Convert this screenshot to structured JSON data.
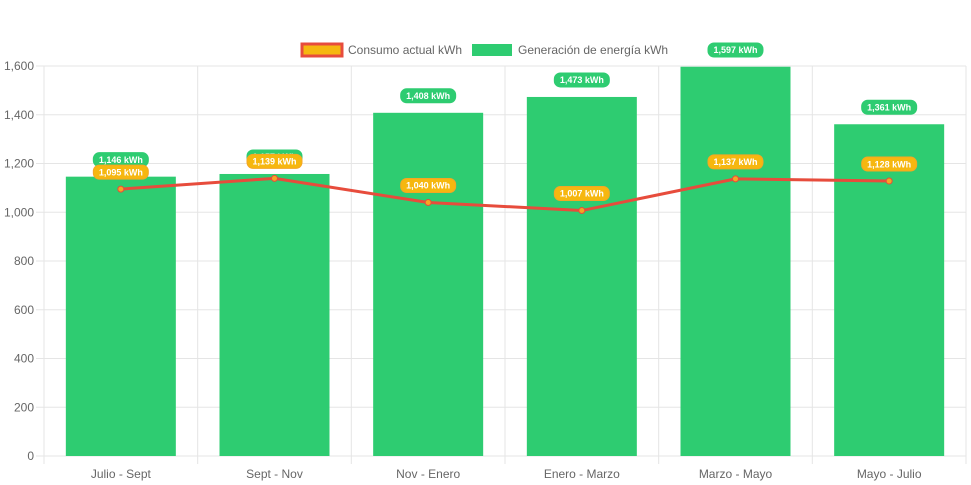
{
  "chart_data": {
    "type": "bar",
    "categories": [
      "Julio - Sept",
      "Sept - Nov",
      "Nov - Enero",
      "Enero - Marzo",
      "Marzo - Mayo",
      "Mayo - Julio"
    ],
    "series": [
      {
        "name": "Consumo actual kWh",
        "type": "line",
        "values": [
          1095,
          1139,
          1040,
          1007,
          1137,
          1128
        ],
        "labels": [
          "1,095 kWh",
          "1,139 kWh",
          "1,040 kWh",
          "1,007 kWh",
          "1,137 kWh",
          "1,128 kWh"
        ]
      },
      {
        "name": "Generación de energía kWh",
        "type": "bar",
        "values": [
          1146,
          1157,
          1408,
          1473,
          1597,
          1361
        ],
        "labels": [
          "1,146 kWh",
          "1,157 kWh",
          "1,408 kWh",
          "1,473 kWh",
          "1,597 kWh",
          "1,361 kWh"
        ]
      }
    ],
    "ylim": [
      0,
      1600
    ],
    "yticks": [
      "0",
      "200",
      "400",
      "600",
      "800",
      "1,000",
      "1,200",
      "1,400",
      "1,600"
    ],
    "grid": true,
    "legend_position": "top-center",
    "colors": {
      "bar": "#2ecc71",
      "line": "#e74c3c",
      "point": "#f5a623",
      "line_label_bg": "#f6b70f",
      "legend_line_fill": "#f6b70f",
      "legend_line_border": "#e74c3c",
      "grid": "#e5e5e5",
      "axis_text": "#666666"
    }
  }
}
